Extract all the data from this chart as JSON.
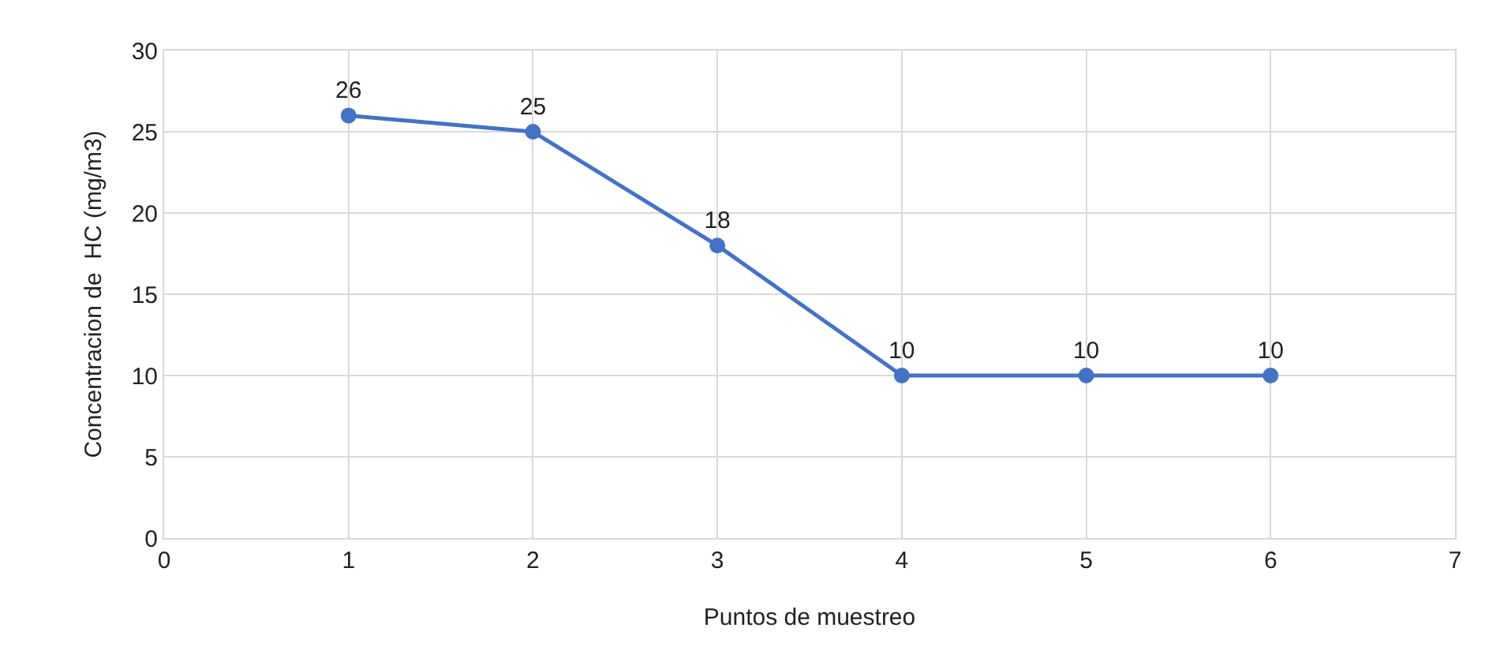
{
  "chart_data": {
    "type": "line",
    "xlabel": "Puntos de muestreo",
    "ylabel": "Concentracion de  HC (mg/m3)",
    "x": [
      1,
      2,
      3,
      4,
      5,
      6
    ],
    "series": [
      {
        "color": "#4472c4",
        "values": [
          26,
          25,
          18,
          10,
          10,
          10
        ]
      }
    ],
    "xlim": [
      0,
      7
    ],
    "xticks": [
      0,
      1,
      2,
      3,
      4,
      5,
      6,
      7
    ],
    "ylim": [
      0,
      30
    ],
    "yticks": [
      0,
      5,
      10,
      15,
      20,
      25,
      30
    ],
    "grid": true,
    "legend": false,
    "marker": "circle",
    "line_style": "solid",
    "data_labels": true
  }
}
